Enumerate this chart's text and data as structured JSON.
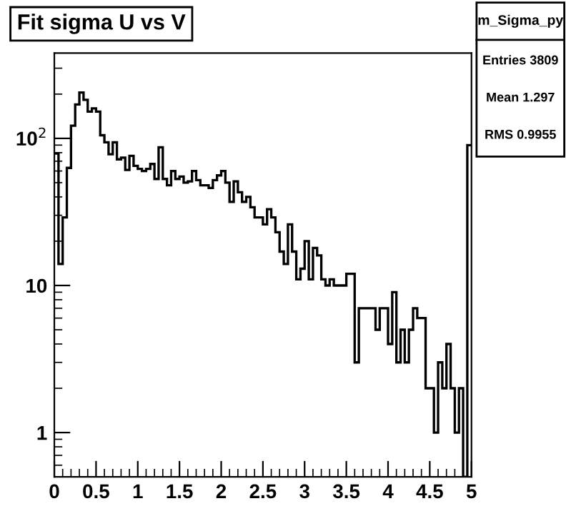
{
  "chart_data": {
    "type": "histogram",
    "title": "Fit sigma U vs V",
    "bins": [
      0,
      0.05,
      0.1,
      0.15,
      0.2,
      0.25,
      0.3,
      0.35,
      0.4,
      0.45,
      0.5,
      0.55,
      0.6,
      0.65,
      0.7,
      0.75,
      0.8,
      0.85,
      0.9,
      0.95,
      1,
      1.05,
      1.1,
      1.15,
      1.2,
      1.25,
      1.3,
      1.35,
      1.4,
      1.45,
      1.5,
      1.55,
      1.6,
      1.65,
      1.7,
      1.75,
      1.8,
      1.85,
      1.9,
      1.95,
      2,
      2.05,
      2.1,
      2.15,
      2.2,
      2.25,
      2.3,
      2.35,
      2.4,
      2.45,
      2.5,
      2.55,
      2.6,
      2.65,
      2.7,
      2.75,
      2.8,
      2.85,
      2.9,
      2.95,
      3,
      3.05,
      3.1,
      3.15,
      3.2,
      3.25,
      3.3,
      3.35,
      3.4,
      3.45,
      3.5,
      3.55,
      3.6,
      3.65,
      3.7,
      3.75,
      3.8,
      3.85,
      3.9,
      3.95,
      4,
      4.05,
      4.1,
      4.15,
      4.2,
      4.25,
      4.3,
      4.35,
      4.4,
      4.45,
      4.5,
      4.55,
      4.6,
      4.65,
      4.7,
      4.75,
      4.8,
      4.85,
      4.9,
      4.95,
      5
    ],
    "values": [
      79,
      14,
      29,
      63,
      122,
      170,
      205,
      183,
      152,
      160,
      152,
      105,
      94,
      78,
      94,
      72,
      74,
      61,
      76,
      65,
      62,
      60,
      62,
      67,
      53,
      87,
      53,
      48,
      60,
      53,
      55,
      50,
      51,
      60,
      52,
      48,
      48,
      46,
      52,
      56,
      60,
      50,
      37,
      51,
      43,
      37,
      40,
      34,
      29,
      29,
      26,
      33,
      29,
      23,
      17,
      14,
      26,
      17,
      11,
      13,
      20,
      11,
      18,
      16,
      11,
      10,
      11,
      10,
      10,
      10,
      12,
      12,
      3,
      7,
      7,
      7,
      7,
      5,
      7,
      7,
      4,
      9,
      3,
      5,
      3,
      5,
      7,
      6,
      6,
      2,
      2,
      1,
      3,
      2,
      4,
      2,
      1,
      2,
      null,
      90
    ],
    "color": "#000000",
    "log": "y",
    "xlim": [
      0,
      5
    ],
    "ylim": [
      0.5,
      380
    ],
    "xticks": [
      0,
      0.5,
      1,
      1.5,
      2,
      2.5,
      3,
      3.5,
      4,
      4.5,
      5
    ],
    "yticks": [
      1,
      10,
      {
        "value": 100,
        "label": "10$^{2}$"
      }
    ],
    "annotations": [
      "m_Sigma_py",
      "Entries 3809",
      "Mean 1.297",
      "RMS 0.9955"
    ]
  }
}
